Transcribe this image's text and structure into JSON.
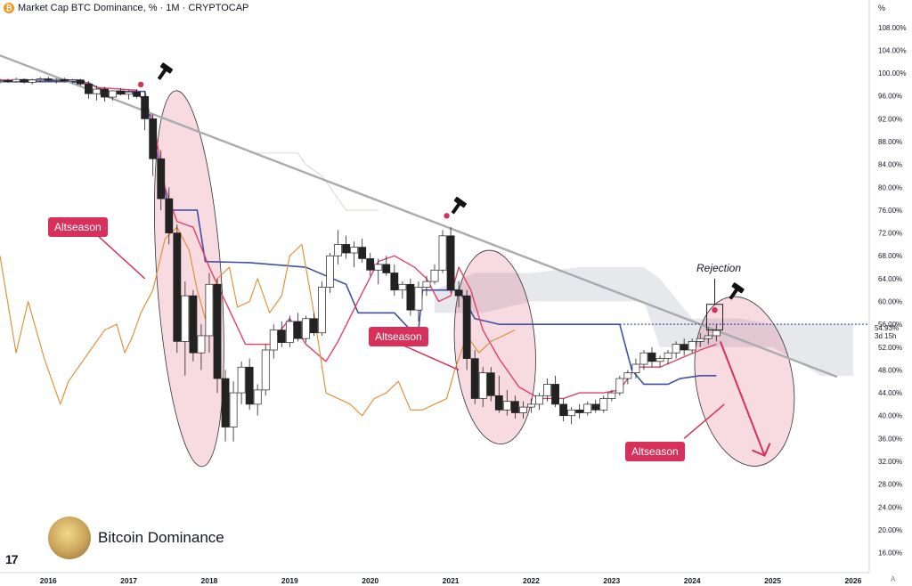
{
  "header": {
    "coin_icon_glyph": "₿",
    "title": "Market Cap BTC Dominance, % · 1M · CRYPTOCAP"
  },
  "price_axis_unit": "%",
  "price_tags": {
    "last_value": "54.93%",
    "countdown": "3d 15h",
    "tag_color": "#d6305b"
  },
  "annotations": {
    "altseason_1": "Altseason",
    "altseason_2": "Altseason",
    "altseason_3": "Altseason",
    "rejection": "Rejection"
  },
  "brand": {
    "name": "Bitcoin Dominance",
    "logo_text": "17"
  },
  "auto_label": "A",
  "colors": {
    "trendline": "#a9abb0",
    "kijun": "#3f4fa6",
    "tenkan": "#e0426a",
    "chikou": "#e08a2e",
    "cloud": "#e6e8ec",
    "highlight_fill": "rgba(214,48,91,0.18)",
    "accent": "#d6305b"
  },
  "chart_data": {
    "type": "line",
    "title": "Market Cap BTC Dominance, % · 1M · CRYPTOCAP",
    "x_ticks": [
      "2016",
      "2017",
      "2018",
      "2019",
      "2020",
      "2021",
      "2022",
      "2023",
      "2024",
      "2025",
      "2026"
    ],
    "y_ticks": [
      "108.00%",
      "104.00%",
      "100.00%",
      "96.00%",
      "92.00%",
      "88.00%",
      "84.00%",
      "80.00%",
      "76.00%",
      "72.00%",
      "68.00%",
      "64.00%",
      "60.00%",
      "56.00%",
      "52.00%",
      "48.00%",
      "44.00%",
      "40.00%",
      "36.00%",
      "32.00%",
      "28.00%",
      "24.00%",
      "20.00%",
      "16.00%"
    ],
    "xlim": [
      2015.4,
      2026.2
    ],
    "ylim": [
      12.5,
      110
    ],
    "series": [
      {
        "key": "kijun",
        "points": [
          [
            2015.4,
            98.5
          ],
          [
            2016.2,
            98.5
          ],
          [
            2016.5,
            98.3
          ],
          [
            2016.7,
            96.8
          ],
          [
            2017.2,
            96.8
          ],
          [
            2017.35,
            86
          ],
          [
            2017.5,
            76
          ],
          [
            2017.85,
            76
          ],
          [
            2017.95,
            67
          ],
          [
            2018.5,
            66.8
          ],
          [
            2019.2,
            66
          ],
          [
            2019.7,
            63
          ],
          [
            2019.85,
            58
          ],
          [
            2020.3,
            58
          ],
          [
            2020.5,
            55
          ],
          [
            2020.6,
            55
          ],
          [
            2020.65,
            62
          ],
          [
            2021.1,
            62
          ],
          [
            2021.3,
            57
          ],
          [
            2021.6,
            56
          ],
          [
            2022.0,
            56
          ],
          [
            2022.8,
            56
          ],
          [
            2023.1,
            56
          ],
          [
            2023.25,
            48
          ],
          [
            2023.4,
            45.5
          ],
          [
            2023.7,
            45.5
          ],
          [
            2023.85,
            46.5
          ],
          [
            2024.1,
            47
          ],
          [
            2024.3,
            47
          ]
        ]
      },
      {
        "key": "tenkan",
        "points": [
          [
            2015.4,
            98.8
          ],
          [
            2016.4,
            98.8
          ],
          [
            2016.6,
            97.5
          ],
          [
            2017.1,
            97
          ],
          [
            2017.3,
            92
          ],
          [
            2017.45,
            80
          ],
          [
            2017.6,
            74
          ],
          [
            2017.8,
            73
          ],
          [
            2018.0,
            66
          ],
          [
            2018.2,
            60
          ],
          [
            2018.45,
            52.5
          ],
          [
            2018.75,
            52.5
          ],
          [
            2019.0,
            57
          ],
          [
            2019.2,
            52.5
          ],
          [
            2019.45,
            49.5
          ],
          [
            2019.6,
            53
          ],
          [
            2019.9,
            61.5
          ],
          [
            2020.1,
            67
          ],
          [
            2020.3,
            68
          ],
          [
            2020.55,
            66
          ],
          [
            2020.7,
            64
          ],
          [
            2020.85,
            60
          ],
          [
            2021.0,
            61
          ],
          [
            2021.1,
            66
          ],
          [
            2021.25,
            62
          ],
          [
            2021.4,
            55
          ],
          [
            2021.6,
            50
          ],
          [
            2021.85,
            45
          ],
          [
            2022.1,
            43
          ],
          [
            2022.4,
            43
          ],
          [
            2022.6,
            44
          ],
          [
            2022.9,
            44
          ],
          [
            2023.1,
            44.5
          ],
          [
            2023.3,
            48.5
          ],
          [
            2023.6,
            48.5
          ],
          [
            2023.85,
            50
          ],
          [
            2024.1,
            51.5
          ],
          [
            2024.3,
            52.5
          ]
        ]
      },
      {
        "key": "chikou",
        "points": [
          [
            2015.4,
            68
          ],
          [
            2015.6,
            51
          ],
          [
            2015.75,
            60
          ],
          [
            2015.95,
            50
          ],
          [
            2016.05,
            46
          ],
          [
            2016.15,
            42
          ],
          [
            2016.25,
            46
          ],
          [
            2016.4,
            49
          ],
          [
            2016.55,
            52
          ],
          [
            2016.7,
            55
          ],
          [
            2016.85,
            56
          ],
          [
            2016.95,
            51
          ],
          [
            2017.05,
            54
          ],
          [
            2017.15,
            58
          ],
          [
            2017.3,
            62
          ],
          [
            2017.45,
            71
          ],
          [
            2017.6,
            73
          ],
          [
            2017.75,
            69
          ],
          [
            2017.85,
            62
          ],
          [
            2017.95,
            57
          ],
          [
            2018.1,
            64
          ],
          [
            2018.25,
            66
          ],
          [
            2018.35,
            59
          ],
          [
            2018.5,
            60
          ],
          [
            2018.6,
            64
          ],
          [
            2018.75,
            58
          ],
          [
            2018.9,
            61
          ],
          [
            2019.0,
            68
          ],
          [
            2019.15,
            70
          ],
          [
            2019.3,
            58
          ],
          [
            2019.45,
            44
          ],
          [
            2019.6,
            43
          ],
          [
            2019.75,
            42
          ],
          [
            2019.9,
            40
          ],
          [
            2020.05,
            43
          ],
          [
            2020.2,
            44
          ],
          [
            2020.35,
            46
          ],
          [
            2020.5,
            41
          ],
          [
            2020.65,
            41
          ],
          [
            2020.8,
            42
          ],
          [
            2020.95,
            43
          ],
          [
            2021.05,
            48
          ],
          [
            2021.2,
            54
          ],
          [
            2021.35,
            51
          ],
          [
            2021.5,
            53
          ],
          [
            2021.65,
            54
          ],
          [
            2021.8,
            55
          ]
        ]
      },
      {
        "key": "main_trendline",
        "points": [
          [
            2015.4,
            103.1
          ],
          [
            2025.8,
            46.8
          ]
        ]
      }
    ],
    "candles_ohlc_approx": [
      [
        2015.4,
        98.5,
        99.0,
        98.2,
        98.7
      ],
      [
        2015.5,
        98.7,
        99.0,
        98.3,
        98.5
      ],
      [
        2015.6,
        98.5,
        99.2,
        98.3,
        98.9
      ],
      [
        2015.7,
        98.9,
        99.1,
        98.2,
        98.4
      ],
      [
        2015.8,
        98.4,
        99.0,
        98.0,
        98.8
      ],
      [
        2015.9,
        98.8,
        99.3,
        98.5,
        99.0
      ],
      [
        2016.0,
        99.0,
        99.4,
        98.6,
        98.7
      ],
      [
        2016.1,
        98.7,
        99.1,
        98.2,
        98.9
      ],
      [
        2016.2,
        98.9,
        99.2,
        98.4,
        98.6
      ],
      [
        2016.3,
        98.6,
        99.0,
        98.2,
        98.8
      ],
      [
        2016.4,
        98.8,
        99.0,
        97.8,
        98.1
      ],
      [
        2016.5,
        98.1,
        98.6,
        95.5,
        96.4
      ],
      [
        2016.6,
        96.4,
        97.8,
        95.2,
        97.2
      ],
      [
        2016.7,
        97.2,
        97.6,
        95.0,
        95.8
      ],
      [
        2016.8,
        95.8,
        97.0,
        95.2,
        96.9
      ],
      [
        2016.9,
        96.9,
        97.4,
        96.1,
        96.3
      ],
      [
        2017.0,
        96.3,
        97.0,
        95.4,
        96.7
      ],
      [
        2017.1,
        96.7,
        97.2,
        95.6,
        95.9
      ],
      [
        2017.2,
        95.9,
        96.9,
        90.0,
        92.0
      ],
      [
        2017.3,
        92.0,
        92.8,
        82.0,
        85.0
      ],
      [
        2017.4,
        85.0,
        86.5,
        76.0,
        78.0
      ],
      [
        2017.5,
        78.0,
        80.0,
        70.0,
        72.0
      ],
      [
        2017.6,
        72.0,
        73.5,
        51.0,
        53.0
      ],
      [
        2017.7,
        53.0,
        63.5,
        47.0,
        61.0
      ],
      [
        2017.8,
        61.0,
        62.0,
        49.5,
        51.0
      ],
      [
        2017.9,
        51.0,
        56.0,
        48.0,
        54.0
      ],
      [
        2018.0,
        54.0,
        65.0,
        51.0,
        63.0
      ],
      [
        2018.1,
        63.0,
        64.0,
        44.0,
        46.5
      ],
      [
        2018.2,
        46.5,
        48.0,
        35.5,
        38.0
      ],
      [
        2018.3,
        38.0,
        46.0,
        35.5,
        44.0
      ],
      [
        2018.4,
        44.0,
        49.5,
        42.0,
        48.5
      ],
      [
        2018.5,
        48.5,
        50.0,
        41.0,
        42.0
      ],
      [
        2018.6,
        42.0,
        45.5,
        40.0,
        44.5
      ],
      [
        2018.7,
        44.5,
        52.5,
        43.5,
        51.5
      ],
      [
        2018.8,
        51.5,
        56.0,
        50.0,
        55.0
      ],
      [
        2018.9,
        55.0,
        56.5,
        52.0,
        52.8
      ],
      [
        2019.0,
        52.8,
        57.5,
        52.0,
        56.5
      ],
      [
        2019.1,
        56.5,
        58.0,
        53.0,
        53.5
      ],
      [
        2019.2,
        53.5,
        57.5,
        52.8,
        57.0
      ],
      [
        2019.3,
        57.0,
        58.0,
        54.0,
        54.5
      ],
      [
        2019.4,
        54.5,
        63.5,
        54.0,
        62.5
      ],
      [
        2019.5,
        62.5,
        68.5,
        61.5,
        68.0
      ],
      [
        2019.6,
        68.0,
        72.5,
        66.5,
        70.0
      ],
      [
        2019.7,
        70.0,
        71.5,
        67.5,
        68.5
      ],
      [
        2019.8,
        68.5,
        70.5,
        66.0,
        69.5
      ],
      [
        2019.9,
        69.5,
        71.0,
        66.8,
        67.5
      ],
      [
        2020.0,
        67.5,
        68.5,
        64.5,
        65.5
      ],
      [
        2020.1,
        65.5,
        67.5,
        63.0,
        66.5
      ],
      [
        2020.2,
        66.5,
        68.0,
        64.5,
        65.0
      ],
      [
        2020.3,
        65.0,
        66.5,
        61.0,
        62.0
      ],
      [
        2020.4,
        62.0,
        63.5,
        60.5,
        63.0
      ],
      [
        2020.5,
        63.0,
        64.0,
        57.5,
        58.5
      ],
      [
        2020.6,
        58.5,
        63.5,
        56.5,
        62.5
      ],
      [
        2020.7,
        62.5,
        64.5,
        61.0,
        63.5
      ],
      [
        2020.8,
        63.5,
        66.5,
        63.0,
        65.5
      ],
      [
        2020.9,
        65.5,
        72.5,
        65.0,
        71.5
      ],
      [
        2021.0,
        71.5,
        73.0,
        61.5,
        62.0
      ],
      [
        2021.1,
        62.0,
        63.5,
        59.0,
        61.0
      ],
      [
        2021.2,
        61.0,
        62.0,
        48.0,
        50.0
      ],
      [
        2021.3,
        50.0,
        51.5,
        42.0,
        43.0
      ],
      [
        2021.4,
        43.0,
        48.5,
        41.5,
        47.5
      ],
      [
        2021.5,
        47.5,
        48.5,
        42.5,
        43.5
      ],
      [
        2021.6,
        43.5,
        47.0,
        40.5,
        41.0
      ],
      [
        2021.7,
        41.0,
        44.5,
        40.0,
        42.5
      ],
      [
        2021.8,
        42.5,
        43.5,
        39.5,
        40.5
      ],
      [
        2021.9,
        40.5,
        42.5,
        39.5,
        41.5
      ],
      [
        2022.0,
        41.5,
        43.0,
        40.5,
        42.0
      ],
      [
        2022.1,
        42.0,
        44.0,
        41.0,
        43.5
      ],
      [
        2022.2,
        43.5,
        46.5,
        42.5,
        45.5
      ],
      [
        2022.3,
        45.5,
        47.0,
        41.5,
        42.0
      ],
      [
        2022.4,
        42.0,
        43.0,
        39.0,
        40.0
      ],
      [
        2022.5,
        40.0,
        41.5,
        38.5,
        41.0
      ],
      [
        2022.6,
        41.0,
        42.0,
        39.5,
        40.5
      ],
      [
        2022.7,
        40.5,
        42.5,
        40.0,
        42.0
      ],
      [
        2022.8,
        42.0,
        42.8,
        40.5,
        41.0
      ],
      [
        2022.9,
        41.0,
        43.5,
        40.5,
        43.0
      ],
      [
        2023.0,
        43.0,
        44.5,
        42.5,
        44.0
      ],
      [
        2023.1,
        44.0,
        47.0,
        43.5,
        46.5
      ],
      [
        2023.2,
        46.5,
        48.0,
        45.5,
        47.5
      ],
      [
        2023.3,
        47.5,
        50.0,
        46.5,
        49.0
      ],
      [
        2023.4,
        49.0,
        51.5,
        48.0,
        51.0
      ],
      [
        2023.5,
        51.0,
        52.0,
        48.5,
        49.5
      ],
      [
        2023.6,
        49.5,
        50.5,
        48.5,
        50.0
      ],
      [
        2023.7,
        50.0,
        51.5,
        49.0,
        51.0
      ],
      [
        2023.8,
        51.0,
        53.0,
        50.0,
        52.5
      ],
      [
        2023.9,
        52.5,
        53.5,
        50.5,
        51.5
      ],
      [
        2024.0,
        51.5,
        53.5,
        51.0,
        53.0
      ],
      [
        2024.1,
        53.0,
        54.5,
        52.0,
        53.5
      ],
      [
        2024.2,
        53.5,
        55.5,
        52.5,
        54.0
      ],
      [
        2024.3,
        54.0,
        56.0,
        53.0,
        54.93
      ]
    ]
  }
}
